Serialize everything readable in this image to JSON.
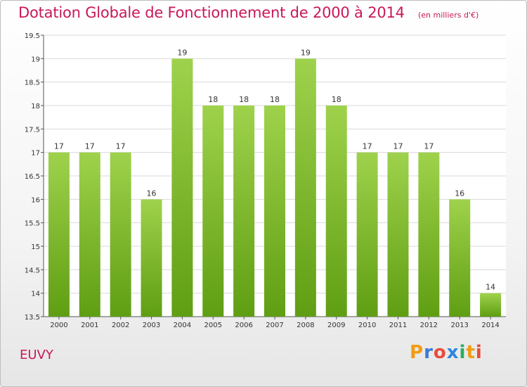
{
  "title": "Dotation Globale de Fonctionnement de 2000 à 2014",
  "units": "(en milliers d'€)",
  "commune": "EUVY",
  "logo": {
    "letters": [
      "P",
      "r",
      "o",
      "x",
      "i",
      "t",
      "i"
    ],
    "colors": [
      "#f39c12",
      "#3a7bd5",
      "#e74c3c",
      "#2e86de",
      "#27ae60",
      "#f39c12",
      "#e74c3c"
    ]
  },
  "colors": {
    "bar_top": "#9fd24c",
    "bar_bottom": "#5f9e13",
    "title": "#c8185a",
    "grid": "#d9d9d9"
  },
  "chart_data": {
    "type": "bar",
    "title": "Dotation Globale de Fonctionnement de 2000 à 2014",
    "ylabel": "(en milliers d'€)",
    "categories": [
      "2000",
      "2001",
      "2002",
      "2003",
      "2004",
      "2005",
      "2006",
      "2007",
      "2008",
      "2009",
      "2010",
      "2011",
      "2012",
      "2013",
      "2014"
    ],
    "values": [
      17,
      17,
      17,
      16,
      19,
      18,
      18,
      18,
      19,
      18,
      17,
      17,
      17,
      16,
      14
    ],
    "labels": [
      "17",
      "17",
      "17",
      "16",
      "19",
      "18",
      "18",
      "18",
      "19",
      "18",
      "17",
      "17",
      "17",
      "16",
      "14"
    ],
    "ylim": [
      13.5,
      19.5
    ],
    "yticks": [
      13.5,
      14,
      14.5,
      15,
      15.5,
      16,
      16.5,
      17,
      17.5,
      18,
      18.5,
      19,
      19.5
    ],
    "ytick_labels": [
      "13.5",
      "14",
      "14.5",
      "15",
      "15.5",
      "16",
      "16.5",
      "17",
      "17.5",
      "18",
      "18.5",
      "19",
      "19.5"
    ],
    "grid": true
  }
}
